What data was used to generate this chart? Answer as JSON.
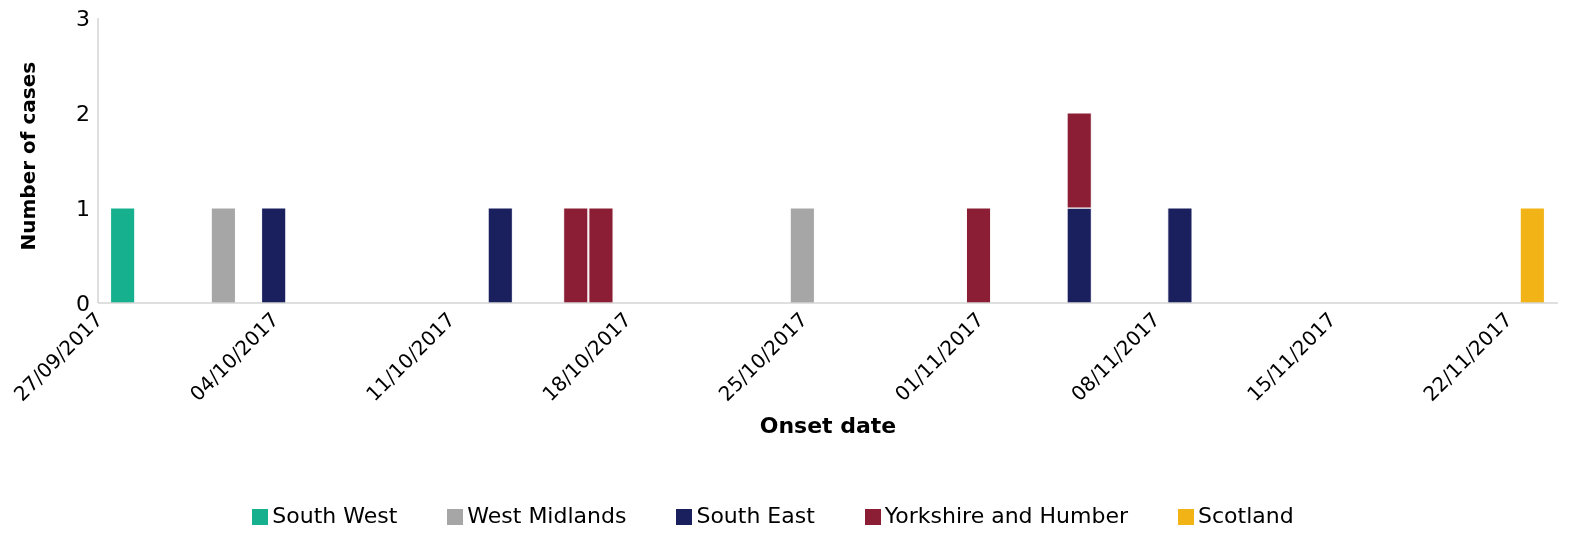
{
  "chart_data": {
    "type": "bar",
    "stacked": true,
    "xlabel": "Onset date",
    "ylabel": "Number of cases",
    "x": [
      "2017-09-28",
      "2017-10-02",
      "2017-10-04",
      "2017-10-13",
      "2017-10-16",
      "2017-10-17",
      "2017-10-25",
      "2017-11-01",
      "2017-11-05",
      "2017-11-09",
      "2017-11-23"
    ],
    "series": [
      {
        "name": "South West",
        "color": "#17b08f",
        "values": [
          1,
          null,
          null,
          null,
          null,
          null,
          null,
          null,
          null,
          null,
          null
        ]
      },
      {
        "name": "West Midlands",
        "color": "#a6a6a6",
        "values": [
          null,
          1,
          null,
          null,
          null,
          null,
          1,
          null,
          null,
          null,
          null
        ]
      },
      {
        "name": "South East",
        "color": "#1a1f5e",
        "values": [
          null,
          null,
          1,
          1,
          null,
          null,
          null,
          null,
          1,
          1,
          null
        ]
      },
      {
        "name": "Yorkshire and Humber",
        "color": "#8b1e35",
        "values": [
          null,
          null,
          null,
          null,
          1,
          1,
          null,
          1,
          1,
          null,
          null
        ]
      },
      {
        "name": "Scotland",
        "color": "#f2b316",
        "values": [
          null,
          null,
          null,
          null,
          null,
          null,
          null,
          null,
          null,
          null,
          1
        ]
      }
    ],
    "xlim": [
      "2017-09-27",
      "2017-11-24"
    ],
    "xticks": [
      {
        "value": "2017-09-27",
        "label": "27/09/2017"
      },
      {
        "value": "2017-10-04",
        "label": "04/10/2017"
      },
      {
        "value": "2017-10-11",
        "label": "11/10/2017"
      },
      {
        "value": "2017-10-18",
        "label": "18/10/2017"
      },
      {
        "value": "2017-10-25",
        "label": "25/10/2017"
      },
      {
        "value": "2017-11-01",
        "label": "01/11/2017"
      },
      {
        "value": "2017-11-08",
        "label": "08/11/2017"
      },
      {
        "value": "2017-11-15",
        "label": "15/11/2017"
      },
      {
        "value": "2017-11-22",
        "label": "22/11/2017"
      }
    ],
    "ylim": [
      0,
      3
    ],
    "yticks": [
      0,
      1,
      2,
      3
    ],
    "grid": false,
    "legend": "bottom"
  }
}
